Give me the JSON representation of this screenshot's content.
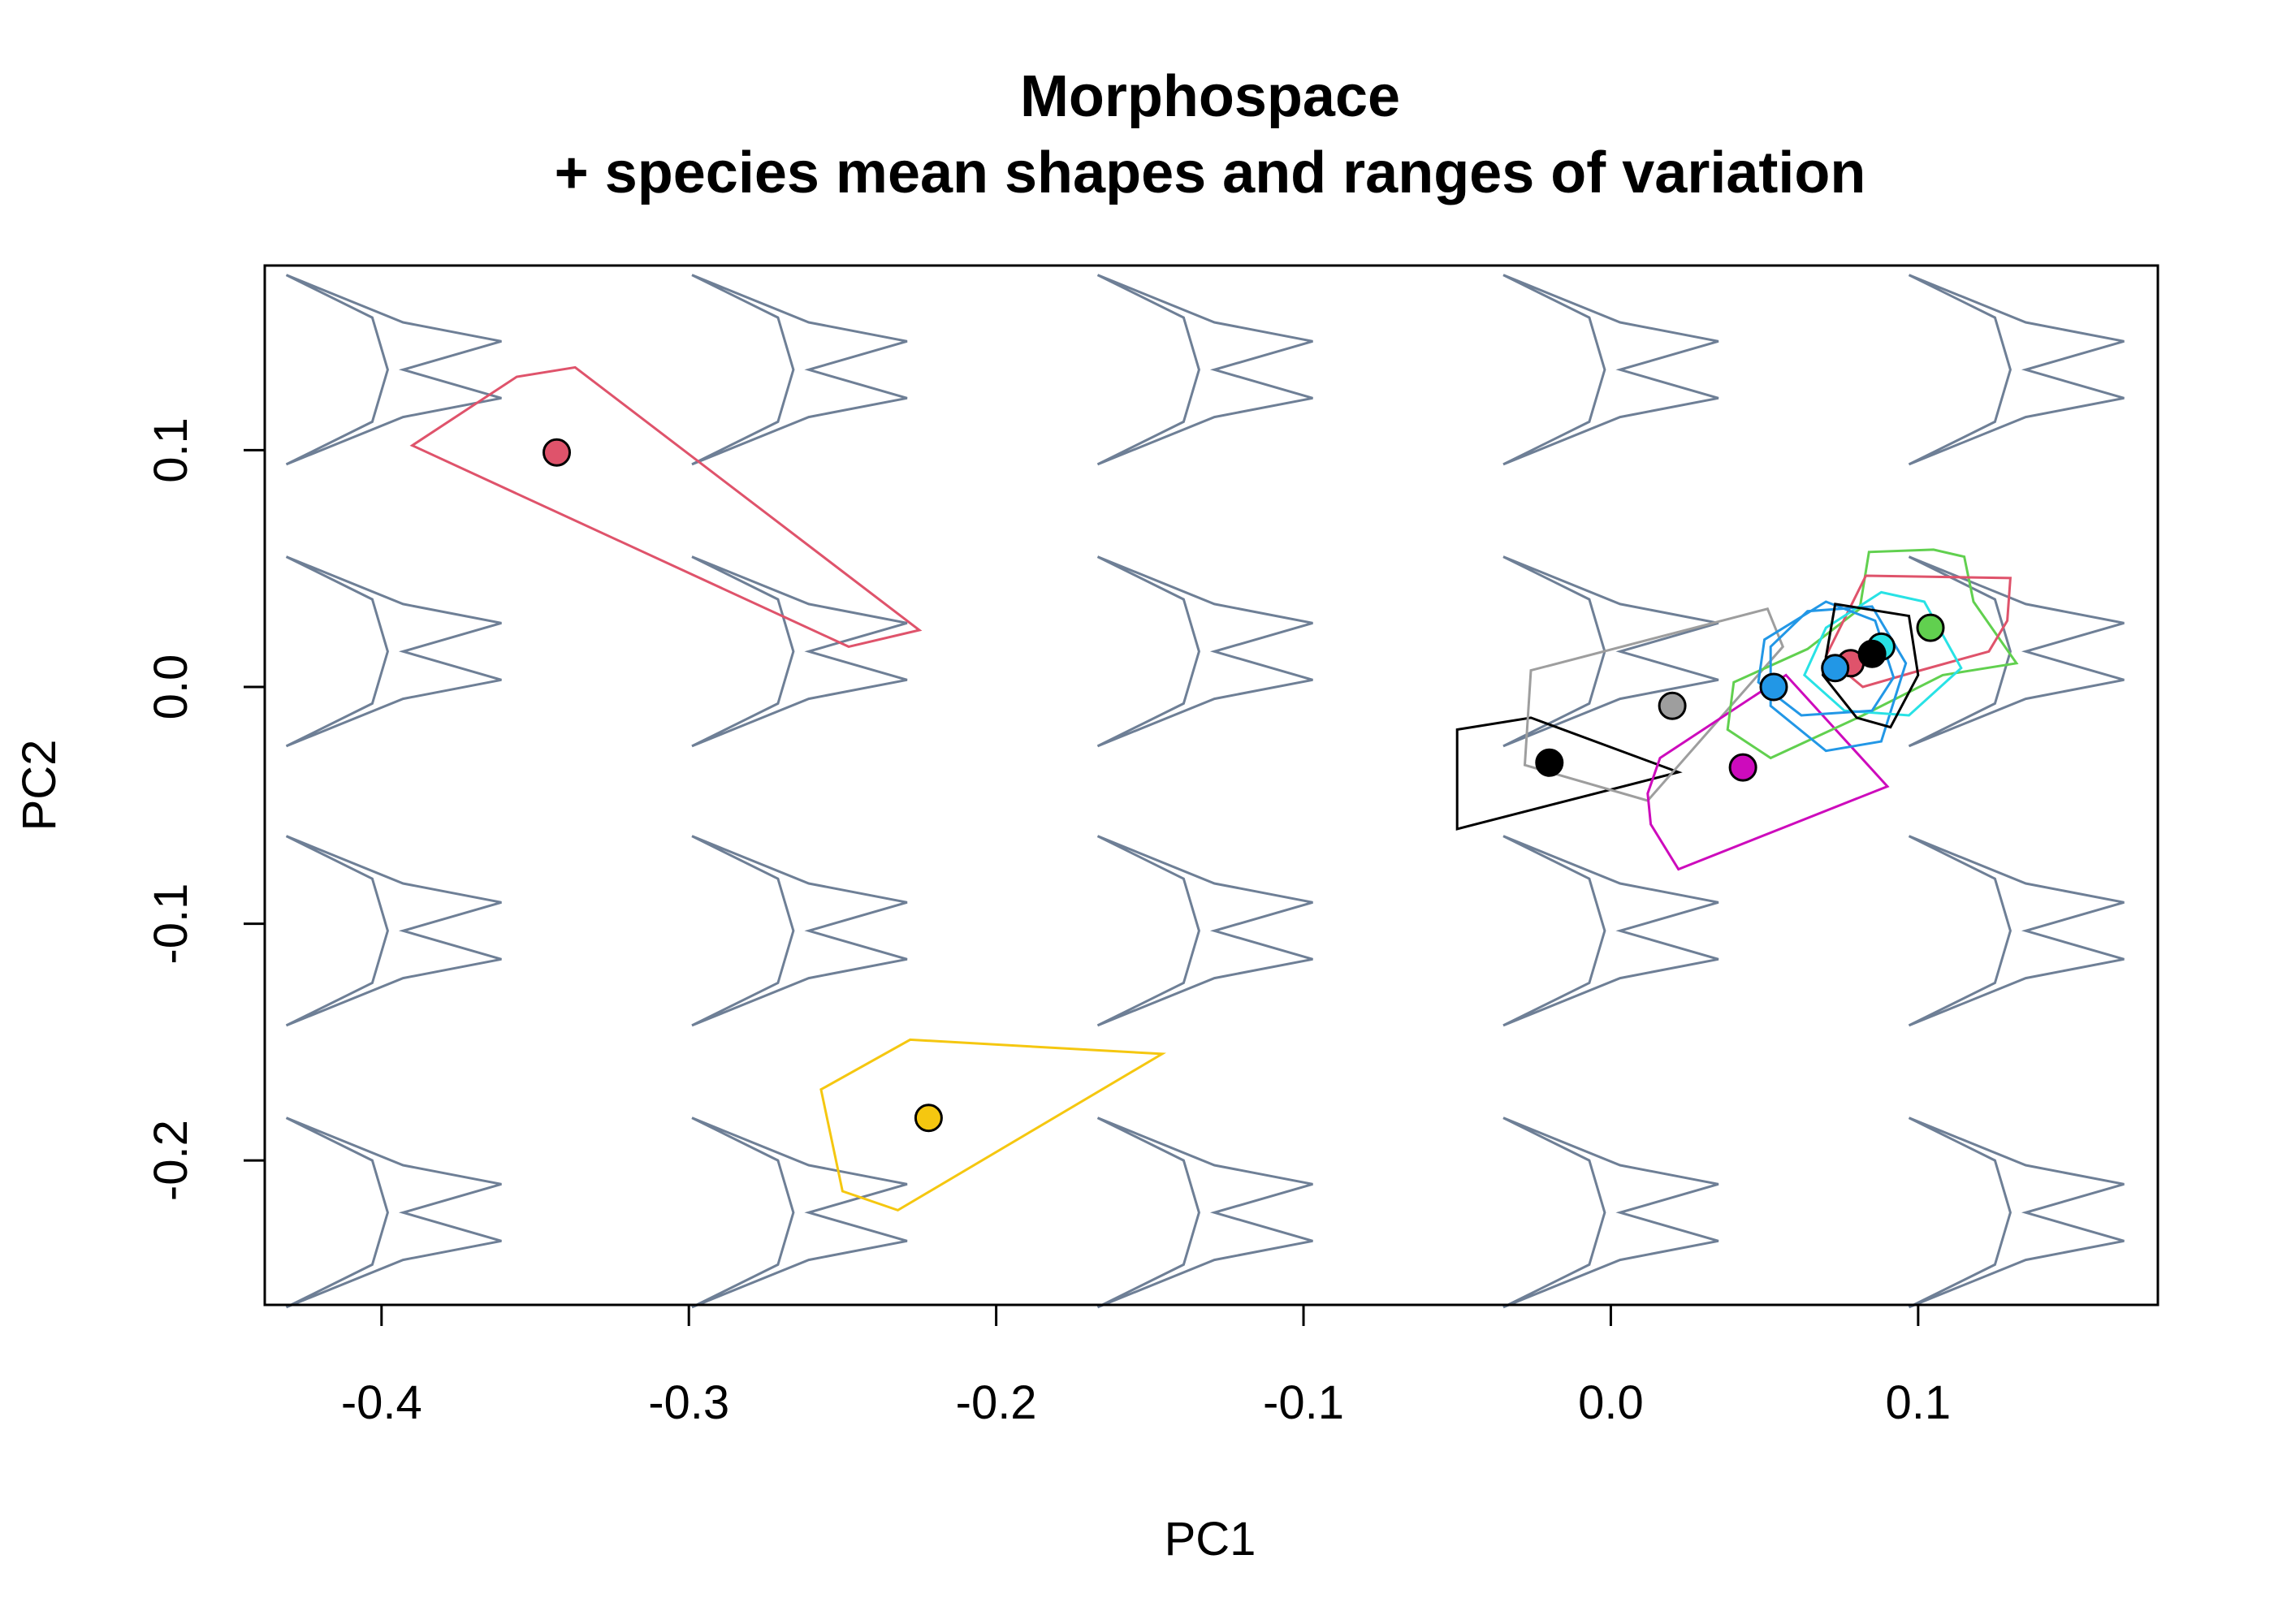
{
  "chart_data": {
    "type": "scatter",
    "title": [
      "Morphospace",
      "+ species mean shapes and ranges of variation"
    ],
    "xlabel": "PC1",
    "ylabel": "PC2",
    "xlim": [
      -0.438,
      0.178
    ],
    "ylim": [
      -0.261,
      0.178
    ],
    "xticks": [
      -0.4,
      -0.3,
      -0.2,
      -0.1,
      0.0,
      0.1
    ],
    "xtick_labels": [
      "-0.4",
      "-0.3",
      "-0.2",
      "-0.1",
      "0.0",
      "0.1"
    ],
    "yticks": [
      -0.2,
      -0.1,
      0.0,
      0.1
    ],
    "ytick_labels": [
      "-0.2",
      "-0.1",
      "0.0",
      "0.1"
    ],
    "grid": false,
    "background_shapes": {
      "color": "#6E7F96",
      "shape_points": [
        [
          -0.038,
          0.04
        ],
        [
          -0.01,
          0.022
        ],
        [
          -0.005,
          0.0
        ],
        [
          -0.01,
          -0.022
        ],
        [
          -0.038,
          -0.04
        ],
        [
          0.0,
          -0.02
        ],
        [
          0.032,
          -0.012
        ],
        [
          0.0,
          0.0
        ],
        [
          0.032,
          0.012
        ],
        [
          0.0,
          0.02
        ]
      ],
      "grid_x": [
        -0.393,
        -0.261,
        -0.129,
        0.003,
        0.135
      ],
      "grid_y": [
        0.134,
        0.015,
        -0.103,
        -0.222
      ]
    },
    "series": [
      {
        "color": "#DF536B",
        "mean": [
          -0.343,
          0.099
        ],
        "hull": [
          [
            -0.39,
            0.102
          ],
          [
            -0.356,
            0.131
          ],
          [
            -0.337,
            0.135
          ],
          [
            -0.225,
            0.024
          ],
          [
            -0.248,
            0.017
          ]
        ]
      },
      {
        "color": "#F5C710",
        "mean": [
          -0.222,
          -0.182
        ],
        "hull": [
          [
            -0.257,
            -0.17
          ],
          [
            -0.228,
            -0.149
          ],
          [
            -0.146,
            -0.155
          ],
          [
            -0.232,
            -0.221
          ],
          [
            -0.25,
            -0.213
          ]
        ]
      },
      {
        "color": "#000000",
        "mean": [
          -0.02,
          -0.032
        ],
        "hull": [
          [
            -0.05,
            -0.018
          ],
          [
            -0.026,
            -0.013
          ],
          [
            0.022,
            -0.036
          ],
          [
            -0.05,
            -0.06
          ]
        ]
      },
      {
        "color": "#9E9E9E",
        "mean": [
          0.02,
          -0.008
        ],
        "hull": [
          [
            -0.026,
            0.007
          ],
          [
            0.051,
            0.033
          ],
          [
            0.056,
            0.017
          ],
          [
            0.012,
            -0.048
          ],
          [
            -0.028,
            -0.033
          ]
        ]
      },
      {
        "color": "#CD0BBC",
        "mean": [
          0.043,
          -0.034
        ],
        "hull": [
          [
            0.016,
            -0.03
          ],
          [
            0.057,
            0.005
          ],
          [
            0.09,
            -0.042
          ],
          [
            0.022,
            -0.077
          ],
          [
            0.013,
            -0.058
          ],
          [
            0.012,
            -0.045
          ]
        ]
      },
      {
        "color": "#61D04F",
        "mean": [
          0.104,
          0.025
        ],
        "hull": [
          [
            0.04,
            0.002
          ],
          [
            0.064,
            0.016
          ],
          [
            0.081,
            0.033
          ],
          [
            0.084,
            0.057
          ],
          [
            0.105,
            0.058
          ],
          [
            0.115,
            0.055
          ],
          [
            0.118,
            0.036
          ],
          [
            0.132,
            0.01
          ],
          [
            0.108,
            0.005
          ],
          [
            0.082,
            -0.012
          ],
          [
            0.052,
            -0.03
          ],
          [
            0.038,
            -0.018
          ]
        ]
      },
      {
        "color": "#DF536B",
        "mean": [
          0.078,
          0.01
        ],
        "hull": [
          [
            0.083,
            0.047
          ],
          [
            0.13,
            0.046
          ],
          [
            0.129,
            0.028
          ],
          [
            0.123,
            0.015
          ],
          [
            0.098,
            0.006
          ],
          [
            0.082,
            0.0
          ],
          [
            0.07,
            0.013
          ]
        ]
      },
      {
        "color": "#2297E6",
        "mean": [
          0.073,
          0.008
        ],
        "hull": [
          [
            0.052,
            0.017
          ],
          [
            0.064,
            0.032
          ],
          [
            0.085,
            0.034
          ],
          [
            0.096,
            0.01
          ],
          [
            0.088,
            -0.023
          ],
          [
            0.07,
            -0.027
          ],
          [
            0.052,
            -0.008
          ]
        ]
      },
      {
        "color": "#28E2E5",
        "mean": [
          0.088,
          0.017
        ],
        "hull": [
          [
            0.07,
            0.025
          ],
          [
            0.088,
            0.04
          ],
          [
            0.102,
            0.036
          ],
          [
            0.114,
            0.008
          ],
          [
            0.097,
            -0.012
          ],
          [
            0.076,
            -0.01
          ],
          [
            0.063,
            0.005
          ]
        ]
      },
      {
        "color": "#2297E6",
        "mean": [
          0.053,
          0.0
        ],
        "hull": [
          [
            0.05,
            0.02
          ],
          [
            0.07,
            0.036
          ],
          [
            0.086,
            0.028
          ],
          [
            0.092,
            0.004
          ],
          [
            0.085,
            -0.01
          ],
          [
            0.062,
            -0.012
          ],
          [
            0.048,
            0.002
          ]
        ]
      },
      {
        "color": "#000000",
        "mean": [
          0.085,
          0.014
        ],
        "hull": [
          [
            0.073,
            0.035
          ],
          [
            0.097,
            0.03
          ],
          [
            0.1,
            0.005
          ],
          [
            0.091,
            -0.017
          ],
          [
            0.08,
            -0.013
          ],
          [
            0.069,
            0.005
          ]
        ]
      }
    ]
  }
}
